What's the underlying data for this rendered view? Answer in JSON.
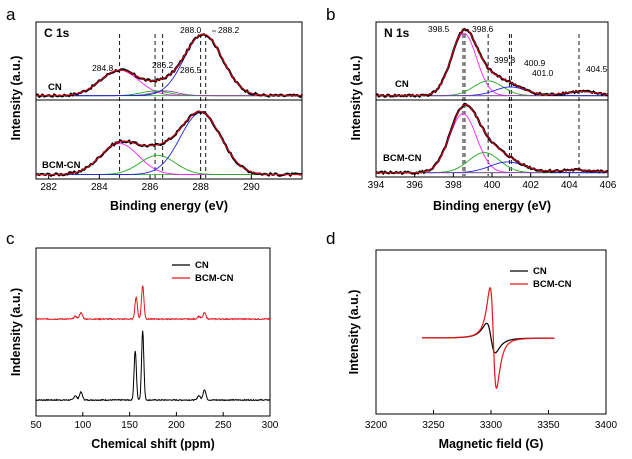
{
  "colors": {
    "exp": "#000000",
    "fit": "#e0001b",
    "c1": "#ff22ff",
    "c2": "#2222dd",
    "c3": "#22aa22",
    "c4": "#8b4aa8",
    "cn": "#000000",
    "bcm": "#e8141c"
  },
  "chart_data": [
    {
      "id": "a",
      "panel_label": "a",
      "type": "line",
      "title": "C 1s",
      "xlabel": "Binding energy (eV)",
      "ylabel": "Intensity (a.u.)",
      "xlim": [
        281.5,
        292
      ],
      "xticks": [
        282,
        284,
        286,
        288,
        290
      ],
      "series_labels": [
        "CN",
        "BCM-CN"
      ],
      "peak_positions": [
        284.8,
        286.2,
        286.5,
        288.0,
        288.2
      ],
      "annotations": [
        "284.8",
        "286.2",
        "286.5",
        "288.0",
        "288.2"
      ],
      "reference_lines": [
        284.8,
        286.2,
        286.5,
        288.0,
        288.2
      ],
      "subplots": [
        {
          "name": "CN",
          "ylim": [
            0,
            1.12
          ],
          "baseline": 0.05,
          "components": [
            {
              "name": "fit-284.8",
              "center": 284.8,
              "width": 0.75,
              "height": 0.38,
              "color_key": "c1"
            },
            {
              "name": "fit-286.2",
              "center": 286.2,
              "width": 0.55,
              "height": 0.07,
              "color_key": "c3"
            },
            {
              "name": "fit-286.5",
              "center": 286.6,
              "width": 0.5,
              "height": 0.07,
              "color_key": "c4"
            },
            {
              "name": "fit-288.0",
              "center": 288.1,
              "width": 0.75,
              "height": 0.92,
              "color_key": "c2"
            }
          ]
        },
        {
          "name": "BCM-CN",
          "ylim": [
            0,
            1.12
          ],
          "baseline": 0.05,
          "components": [
            {
              "name": "fit-284.8",
              "center": 284.8,
              "width": 0.75,
              "height": 0.45,
              "color_key": "c1"
            },
            {
              "name": "fit-286.2",
              "center": 286.3,
              "width": 0.7,
              "height": 0.28,
              "color_key": "c3"
            },
            {
              "name": "fit-288.0",
              "center": 288.0,
              "width": 0.8,
              "height": 0.9,
              "color_key": "c2"
            }
          ]
        }
      ]
    },
    {
      "id": "b",
      "panel_label": "b",
      "type": "line",
      "title": "N 1s",
      "xlabel": "Binding energy (eV)",
      "ylabel": "Intensity (a.u.)",
      "xlim": [
        394,
        406
      ],
      "xticks": [
        394,
        396,
        398,
        400,
        402,
        404,
        406
      ],
      "series_labels": [
        "CN",
        "BCM-CN"
      ],
      "peak_positions": [
        398.5,
        398.6,
        399.8,
        400.9,
        401.0,
        404.5
      ],
      "annotations": [
        "398.5",
        "398.6",
        "399.8",
        "400.9",
        "401.0",
        "404.5"
      ],
      "reference_lines": [
        398.5,
        398.6,
        399.8,
        400.9,
        401.0,
        404.5
      ],
      "subplots": [
        {
          "name": "CN",
          "ylim": [
            0,
            1.12
          ],
          "baseline": 0.05,
          "components": [
            {
              "name": "fit-398.5",
              "center": 398.55,
              "width": 0.65,
              "height": 0.93,
              "color_key": "c1"
            },
            {
              "name": "fit-399.8",
              "center": 399.8,
              "width": 0.75,
              "height": 0.22,
              "color_key": "c3"
            },
            {
              "name": "fit-400.9",
              "center": 400.95,
              "width": 0.8,
              "height": 0.13,
              "color_key": "c2"
            },
            {
              "name": "fit-404.5",
              "center": 404.6,
              "width": 0.9,
              "height": 0.06,
              "color_key": "c4"
            }
          ]
        },
        {
          "name": "BCM-CN",
          "ylim": [
            0,
            1.12
          ],
          "baseline": 0.05,
          "components": [
            {
              "name": "fit-398.5",
              "center": 398.5,
              "width": 0.7,
              "height": 0.88,
              "color_key": "c1"
            },
            {
              "name": "fit-399.8",
              "center": 399.6,
              "width": 0.8,
              "height": 0.3,
              "color_key": "c3"
            },
            {
              "name": "fit-400.9",
              "center": 400.8,
              "width": 0.9,
              "height": 0.16,
              "color_key": "c2"
            },
            {
              "name": "fit-404.5",
              "center": 404.3,
              "width": 1.0,
              "height": 0.04,
              "color_key": "c4"
            }
          ]
        }
      ]
    },
    {
      "id": "c",
      "panel_label": "c",
      "type": "line",
      "xlabel": "Chemical shift (ppm)",
      "ylabel": "Indensity (a.u.)",
      "xlim": [
        50,
        300
      ],
      "xticks": [
        50,
        100,
        150,
        200,
        250,
        300
      ],
      "legend": [
        "CN",
        "BCM-CN"
      ],
      "legend_position": "top-right",
      "series": [
        {
          "name": "CN",
          "color_key": "cn",
          "offset": 0.0,
          "peaks": [
            [
              92,
              0.05,
              1.5
            ],
            [
              98,
              0.09,
              1.6
            ],
            [
              156,
              0.56,
              1.2
            ],
            [
              164,
              0.79,
              1.2
            ],
            [
              224,
              0.05,
              1.5
            ],
            [
              230,
              0.12,
              1.5
            ]
          ]
        },
        {
          "name": "BCM-CN",
          "color_key": "bcm",
          "offset": 0.92,
          "peaks": [
            [
              92,
              0.03,
              1.5
            ],
            [
              98,
              0.07,
              1.6
            ],
            [
              157,
              0.25,
              1.3
            ],
            [
              164,
              0.38,
              1.3
            ],
            [
              224,
              0.03,
              1.5
            ],
            [
              230,
              0.07,
              1.5
            ]
          ]
        }
      ]
    },
    {
      "id": "d",
      "panel_label": "d",
      "type": "line",
      "xlabel": "Magnetic field (G)",
      "ylabel": "Intensity (a.u.)",
      "xlim": [
        3200,
        3400
      ],
      "xticks": [
        3200,
        3250,
        3300,
        3350,
        3400
      ],
      "legend": [
        "CN",
        "BCM-CN"
      ],
      "legend_position": "top-right",
      "series": [
        {
          "name": "CN",
          "color_key": "cn",
          "center": 3300,
          "gamma": 6.5,
          "amplitude": 0.25,
          "x_range": [
            3240,
            3355
          ]
        },
        {
          "name": "BCM-CN",
          "color_key": "bcm",
          "center": 3302,
          "gamma": 4.8,
          "amplitude": 0.85,
          "x_range": [
            3240,
            3355
          ]
        }
      ]
    }
  ]
}
